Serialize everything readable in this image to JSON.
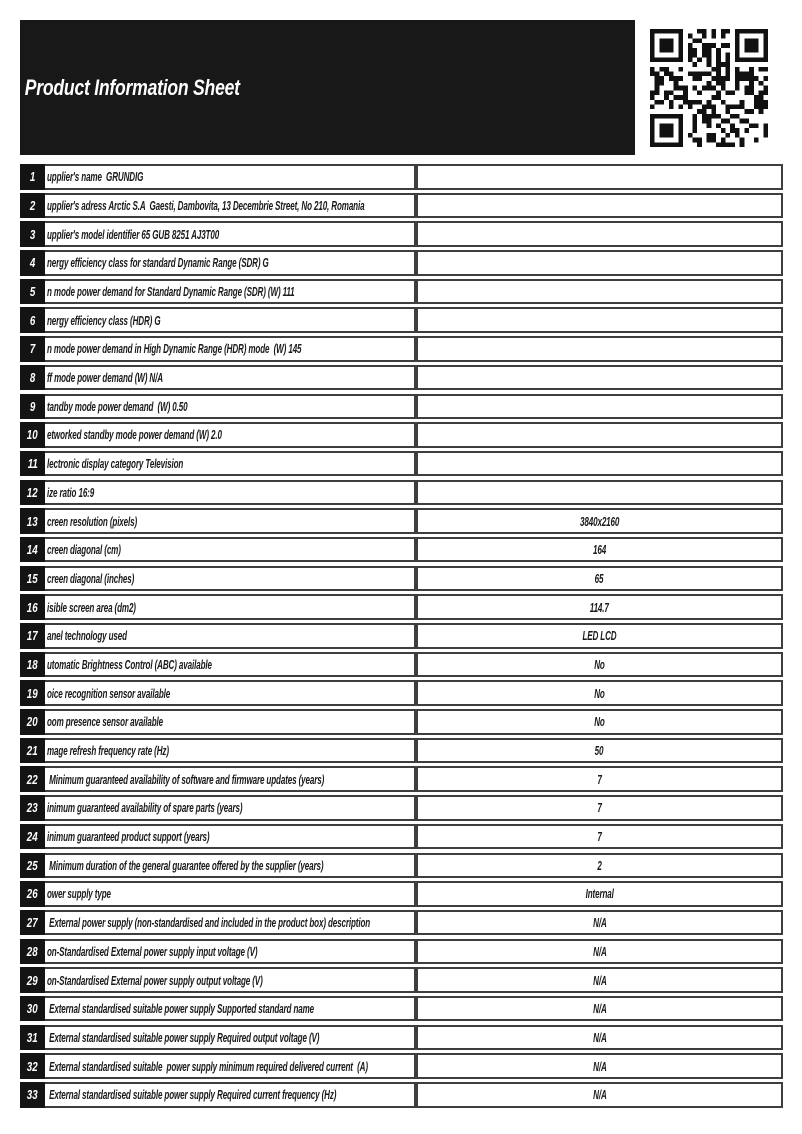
{
  "header": {
    "title": "Product Information Sheet",
    "qr": "qr-code"
  },
  "colors": {
    "header_bg": "#181818",
    "number_box_bg": "#141414",
    "cell_border": "#3e3e3e",
    "text": "#1a1a1a"
  },
  "table": {
    "rows": [
      {
        "num": "1",
        "label": "upplier's name  GRUNDIG",
        "value": ""
      },
      {
        "num": "2",
        "label": "upplier's adress Arctic S.A  Gaesti, Dambovita, 13 Decembrie Street, No 210, Romania",
        "value": ""
      },
      {
        "num": "3",
        "label": "upplier's model identifier 65 GUB 8251 AJ3T00",
        "value": ""
      },
      {
        "num": "4",
        "label": "nergy efficiency class for standard Dynamic Range (SDR) G",
        "value": ""
      },
      {
        "num": "5",
        "label": "n mode power demand for Standard Dynamic Range (SDR) (W) 111",
        "value": ""
      },
      {
        "num": "6",
        "label": "nergy efficiency class (HDR) G",
        "value": ""
      },
      {
        "num": "7",
        "label": "n mode power demand in High Dynamic Range (HDR) mode  (W) 145",
        "value": ""
      },
      {
        "num": "8",
        "label": "ff mode power demand (W) N/A",
        "value": ""
      },
      {
        "num": "9",
        "label": "tandby mode power demand  (W) 0.50",
        "value": ""
      },
      {
        "num": "10",
        "label": "etworked standby mode power demand (W) 2.0",
        "value": ""
      },
      {
        "num": "11",
        "label": "lectronic display category Television",
        "value": ""
      },
      {
        "num": "12",
        "label": "ize ratio 16:9",
        "value": ""
      },
      {
        "num": "13",
        "label": "creen resolution (pixels)",
        "value": "3840x2160"
      },
      {
        "num": "14",
        "label": "creen diagonal (cm)",
        "value": "164"
      },
      {
        "num": "15",
        "label": "creen diagonal (inches)",
        "value": "65"
      },
      {
        "num": "16",
        "label": "isible screen area (dm2)",
        "value": "114.7"
      },
      {
        "num": "17",
        "label": "anel technology used",
        "value": "LED LCD"
      },
      {
        "num": "18",
        "label": "utomatic Brightness Control (ABC) available",
        "value": "No"
      },
      {
        "num": "19",
        "label": "oice recognition sensor available",
        "value": "No"
      },
      {
        "num": "20",
        "label": "oom presence sensor available",
        "value": "No"
      },
      {
        "num": "21",
        "label": "mage refresh frequency rate (Hz)",
        "value": "50"
      },
      {
        "num": "22",
        "label": " Minimum guaranteed availability of software and firmware updates (years)",
        "value": "7"
      },
      {
        "num": "23",
        "label": "inimum guaranteed availability of spare parts (years)",
        "value": "7"
      },
      {
        "num": "24",
        "label": "inimum guaranteed product support (years)",
        "value": "7"
      },
      {
        "num": "25",
        "label": " Minimum duration of the general guarantee offered by the supplier (years)",
        "value": "2"
      },
      {
        "num": "26",
        "label": "ower supply type",
        "value": "Internal"
      },
      {
        "num": "27",
        "label": " External power supply (non-standardised and included in the product box) description",
        "value": "N/A"
      },
      {
        "num": "28",
        "label": "on-Standardised External power supply input voltage (V)",
        "value": "N/A"
      },
      {
        "num": "29",
        "label": "on-Standardised External power supply output voltage (V)",
        "value": "N/A"
      },
      {
        "num": "30",
        "label": " External standardised suitable power supply Supported standard name",
        "value": "N/A"
      },
      {
        "num": "31",
        "label": " External standardised suitable power supply Required output voltage (V)",
        "value": "N/A"
      },
      {
        "num": "32",
        "label": " External standardised suitable  power supply minimum required delivered current  (A)",
        "value": "N/A"
      },
      {
        "num": "33",
        "label": " External standardised suitable power supply Required current frequency (Hz)",
        "value": "N/A"
      }
    ]
  }
}
